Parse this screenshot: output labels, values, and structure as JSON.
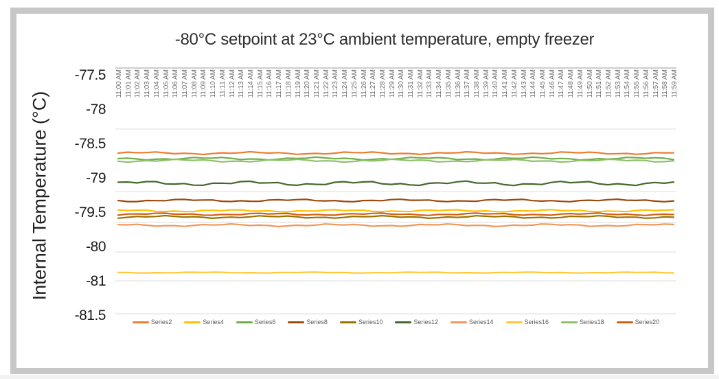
{
  "title": "-80°C setpoint at 23°C ambient temperature, empty freezer",
  "chart_data": {
    "type": "line",
    "title": "-80°C setpoint at 23°C ambient temperature, empty freezer",
    "xlabel": "",
    "ylabel": "Internal Temperature (°C)",
    "legend_position": "bottom",
    "grid": "horizontal-only",
    "y_tick_labels": [
      "-77.5",
      "-78",
      "-78.5",
      "-79",
      "-79.5",
      "-80",
      "-81",
      "-81.5"
    ],
    "y_tick_values": [
      -77.5,
      -78,
      -78.5,
      -79,
      -79.5,
      -80,
      -81,
      -81.5
    ],
    "ylim_displayed": [
      -77.5,
      -81.5
    ],
    "y_axis_note": "tick labels equally spaced as displayed; the -80 to -81 step spans one gridline interval",
    "categories": [
      "11:00 AM",
      "11:01 AM",
      "11:02 AM",
      "11:03 AM",
      "11:04 AM",
      "11:05 AM",
      "11:06 AM",
      "11:07 AM",
      "11:08 AM",
      "11:09 AM",
      "11:10 AM",
      "11:11 AM",
      "11:12 AM",
      "11:13 AM",
      "11:14 AM",
      "11:15 AM",
      "11:16 AM",
      "11:17 AM",
      "11:18 AM",
      "11:19 AM",
      "11:20 AM",
      "11:21 AM",
      "11:22 AM",
      "11:23 AM",
      "11:24 AM",
      "11:25 AM",
      "11:26 AM",
      "11:27 AM",
      "11:28 AM",
      "11:29 AM",
      "11:30 AM",
      "11:31 AM",
      "11:32 AM",
      "11:33 AM",
      "11:34 AM",
      "11:35 AM",
      "11:36 AM",
      "11:37 AM",
      "11:38 AM",
      "11:39 AM",
      "11:40 AM",
      "11:41 AM",
      "11:42 AM",
      "11:43 AM",
      "11:44 AM",
      "11:45 AM",
      "11:46 AM",
      "11:47 AM",
      "11:48 AM",
      "11:49 AM",
      "11:50 AM",
      "11:51 AM",
      "11:52 AM",
      "11:53 AM",
      "11:54 AM",
      "11:55 AM",
      "11:56 AM",
      "11:57 AM",
      "11:58 AM",
      "11:59 AM"
    ],
    "series_note": "each series is essentially flat across all 60 minutes at its baseline value with small noise of the listed amplitude (°C)",
    "series": [
      {
        "name": "Series2",
        "color": "#ED7D31",
        "baseline": -78.61,
        "amplitude": 0.02
      },
      {
        "name": "Series4",
        "color": "#FFC000",
        "baseline": -79.45,
        "amplitude": 0.018
      },
      {
        "name": "Series6",
        "color": "#70AD47",
        "baseline": -78.69,
        "amplitude": 0.022
      },
      {
        "name": "Series8",
        "color": "#9E480E",
        "baseline": -79.3,
        "amplitude": 0.02
      },
      {
        "name": "Series10",
        "color": "#997300",
        "baseline": -79.54,
        "amplitude": 0.02
      },
      {
        "name": "Series12",
        "color": "#43682B",
        "baseline": -79.05,
        "amplitude": 0.035
      },
      {
        "name": "Series14",
        "color": "#F1975A",
        "baseline": -79.66,
        "amplitude": 0.02
      },
      {
        "name": "Series16",
        "color": "#FFC833",
        "baseline": -80.7,
        "amplitude": 0.015
      },
      {
        "name": "Series18",
        "color": "#8CC168",
        "baseline": -78.72,
        "amplitude": 0.022
      },
      {
        "name": "Series20",
        "color": "#D26012",
        "baseline": -79.5,
        "amplitude": 0.018
      }
    ]
  }
}
